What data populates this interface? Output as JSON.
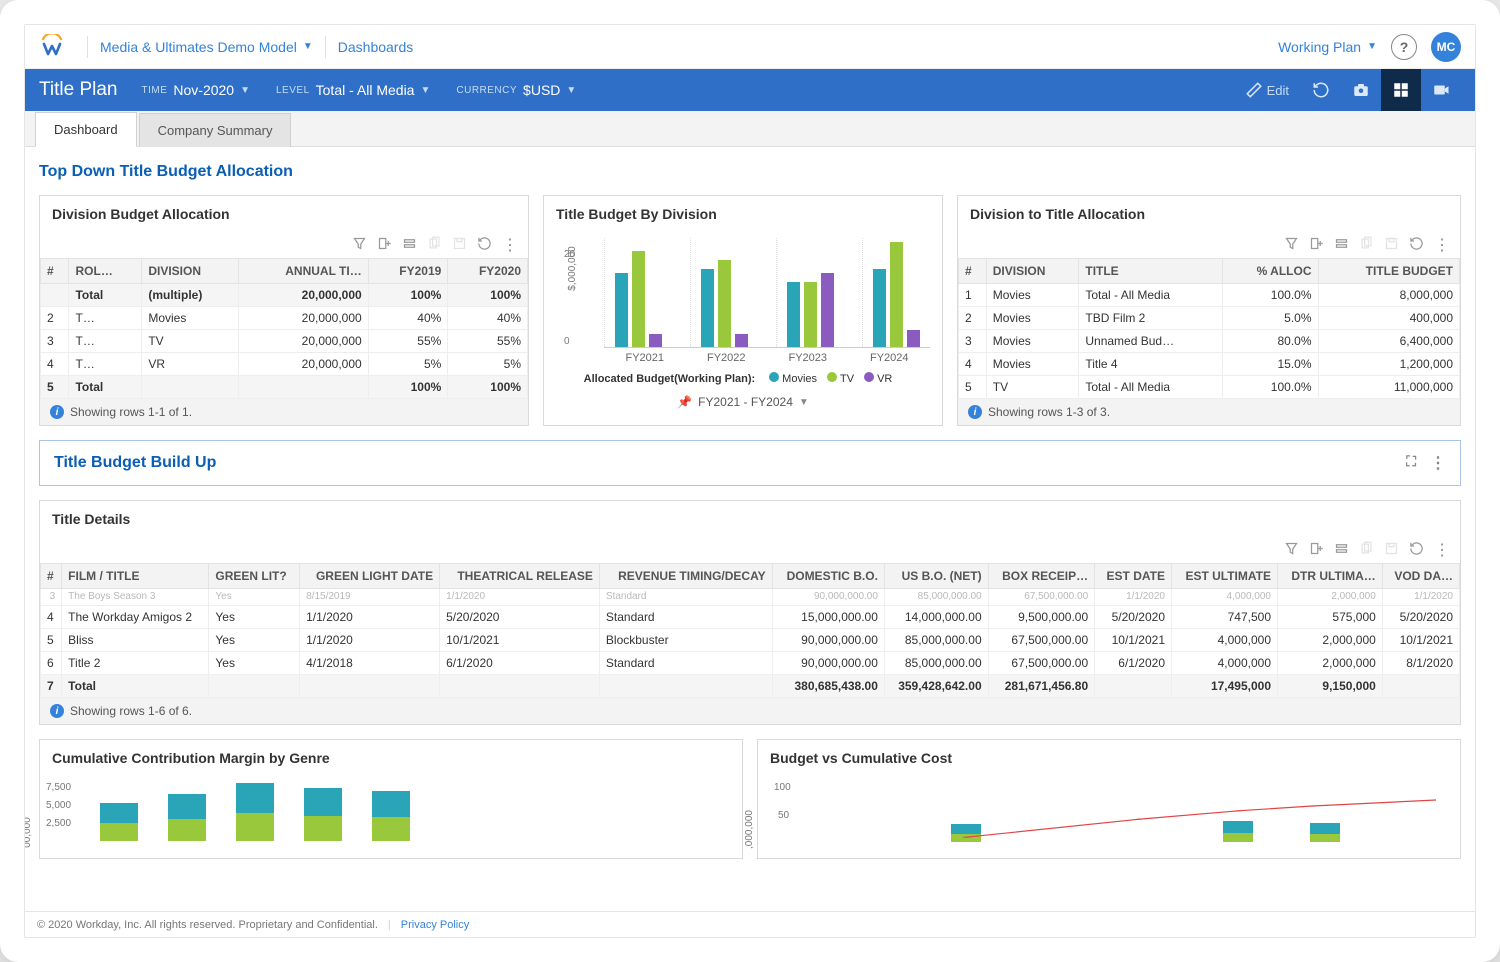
{
  "colors": {
    "blue_bar": "#2f6fc8",
    "link": "#3582db",
    "movies": "#2aa5b8",
    "tv": "#9ac83c",
    "vr": "#8a5cbf",
    "stack_a": "#2aa5b8",
    "stack_b": "#9ac83c",
    "line_red": "#e04545"
  },
  "topbar": {
    "model_name": "Media & Ultimates Demo Model",
    "breadcrumb": "Dashboards",
    "working_plan": "Working Plan",
    "avatar": "MC"
  },
  "bluebar": {
    "page_title": "Title Plan",
    "time_label": "TIME",
    "time_value": "Nov-2020",
    "level_label": "LEVEL",
    "level_value": "Total - All Media",
    "currency_label": "CURRENCY",
    "currency_value": "$USD",
    "edit": "Edit"
  },
  "tabs": {
    "t1": "Dashboard",
    "t2": "Company Summary"
  },
  "sections": {
    "top": "Top Down Title Budget Allocation",
    "build": "Title Budget Build Up"
  },
  "division_budget": {
    "title": "Division Budget Allocation",
    "columns": [
      "#",
      "ROL…",
      "DIVISION",
      "ANNUAL TI…",
      "FY2019",
      "FY2020"
    ],
    "rows": [
      [
        "",
        "Total",
        "(multiple)",
        "20,000,000",
        "100%",
        "100%"
      ],
      [
        "2",
        "T…",
        "Movies",
        "20,000,000",
        "40%",
        "40%"
      ],
      [
        "3",
        "T…",
        "TV",
        "20,000,000",
        "55%",
        "55%"
      ],
      [
        "4",
        "T…",
        "VR",
        "20,000,000",
        "5%",
        "5%"
      ],
      [
        "5",
        "Total",
        "",
        "",
        "100%",
        "100%"
      ]
    ],
    "info": "Showing rows 1-1 of 1."
  },
  "chart": {
    "title": "Title Budget By Division",
    "ylabel": "$,000,000",
    "yticks": [
      0,
      20
    ],
    "ymax": 25,
    "categories": [
      "FY2021",
      "FY2022",
      "FY2023",
      "FY2024"
    ],
    "series": [
      {
        "name": "Movies",
        "color": "#2aa5b8",
        "values": [
          17,
          18,
          15,
          18
        ]
      },
      {
        "name": "TV",
        "color": "#9ac83c",
        "values": [
          22,
          20,
          15,
          24
        ]
      },
      {
        "name": "VR",
        "color": "#8a5cbf",
        "values": [
          3,
          3,
          17,
          4
        ]
      }
    ],
    "legend_title": "Allocated Budget(Working Plan):",
    "range": "FY2021 - FY2024"
  },
  "division_to_title": {
    "title": "Division to Title Allocation",
    "columns": [
      "#",
      "DIVISION",
      "TITLE",
      "% ALLOC",
      "TITLE BUDGET"
    ],
    "rows": [
      [
        "1",
        "Movies",
        "Total - All Media",
        "100.0%",
        "8,000,000"
      ],
      [
        "2",
        "Movies",
        "TBD Film 2",
        "5.0%",
        "400,000"
      ],
      [
        "3",
        "Movies",
        "Unnamed Bud…",
        "80.0%",
        "6,400,000"
      ],
      [
        "4",
        "Movies",
        "Title 4",
        "15.0%",
        "1,200,000"
      ],
      [
        "5",
        "TV",
        "Total - All Media",
        "100.0%",
        "11,000,000"
      ]
    ],
    "info": "Showing rows 1-3 of 3."
  },
  "title_details": {
    "title": "Title Details",
    "columns": [
      "#",
      "FILM / TITLE",
      "GREEN LIT?",
      "GREEN LIGHT DATE",
      "THEATRICAL RELEASE",
      "REVENUE TIMING/DECAY",
      "DOMESTIC B.O.",
      "US B.O. (NET)",
      "BOX RECEIP…",
      "EST DATE",
      "EST ULTIMATE",
      "DTR ULTIMA…",
      "VOD DA…"
    ],
    "rows": [
      [
        "4",
        "The Workday Amigos 2",
        "Yes",
        "1/1/2020",
        "5/20/2020",
        "Standard",
        "15,000,000.00",
        "14,000,000.00",
        "9,500,000.00",
        "5/20/2020",
        "747,500",
        "575,000",
        "5/20/2020"
      ],
      [
        "5",
        "Bliss",
        "Yes",
        "1/1/2020",
        "10/1/2021",
        "Blockbuster",
        "90,000,000.00",
        "85,000,000.00",
        "67,500,000.00",
        "10/1/2021",
        "4,000,000",
        "2,000,000",
        "10/1/2021"
      ],
      [
        "6",
        "Title 2",
        "Yes",
        "4/1/2018",
        "6/1/2020",
        "Standard",
        "90,000,000.00",
        "85,000,000.00",
        "67,500,000.00",
        "6/1/2020",
        "4,000,000",
        "2,000,000",
        "8/1/2020"
      ],
      [
        "7",
        "Total",
        "",
        "",
        "",
        "",
        "380,685,438.00",
        "359,428,642.00",
        "281,671,456.80",
        "",
        "17,495,000",
        "9,150,000",
        ""
      ]
    ],
    "cutoff_row": [
      "3",
      "The Boys Season 3",
      "Yes",
      "8/15/2019",
      "1/1/2020",
      "Standard",
      "90,000,000.00",
      "85,000,000.00",
      "67,500,000.00",
      "1/1/2020",
      "4,000,000",
      "2,000,000",
      "1/1/2020"
    ],
    "info": "Showing rows 1-6 of 6."
  },
  "margin_chart": {
    "title": "Cumulative Contribution Margin by Genre",
    "yticks": [
      "7,500",
      "5,000",
      "2,500"
    ],
    "ylabel": "00,000",
    "bars": [
      {
        "a": 20,
        "b": 18
      },
      {
        "a": 25,
        "b": 22
      },
      {
        "a": 30,
        "b": 28
      },
      {
        "a": 28,
        "b": 25
      },
      {
        "a": 26,
        "b": 24
      }
    ]
  },
  "budget_cost": {
    "title": "Budget vs Cumulative Cost",
    "yticks": [
      "100",
      "50"
    ],
    "ylabel": ",000,000",
    "line_points": [
      [
        0.24,
        0.92
      ],
      [
        0.52,
        0.62
      ],
      [
        0.68,
        0.48
      ],
      [
        0.8,
        0.4
      ],
      [
        1.0,
        0.3
      ]
    ],
    "bars": [
      {
        "x": 0.24,
        "a": 10,
        "b": 8
      },
      {
        "x": 0.68,
        "a": 12,
        "b": 9
      },
      {
        "x": 0.82,
        "a": 11,
        "b": 8
      }
    ]
  },
  "footer": {
    "copyright": "© 2020 Workday, Inc. All rights reserved. Proprietary and Confidential.",
    "privacy": "Privacy Policy"
  }
}
